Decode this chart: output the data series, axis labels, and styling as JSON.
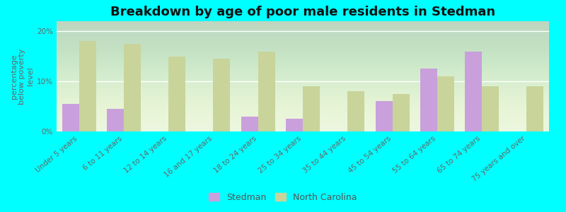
{
  "title": "Breakdown by age of poor male residents in Stedman",
  "ylabel": "percentage\nbelow poverty\nlevel",
  "categories": [
    "Under 5 years",
    "6 to 11 years",
    "12 to 14 years",
    "16 and 17 years",
    "18 to 24 years",
    "25 to 34 years",
    "35 to 44 years",
    "45 to 54 years",
    "55 to 64 years",
    "65 to 74 years",
    "75 years and over"
  ],
  "stedman_values": [
    5.5,
    4.5,
    0,
    0,
    3.0,
    2.5,
    0,
    6.0,
    12.5,
    16.0,
    0
  ],
  "nc_values": [
    18.0,
    17.5,
    15.0,
    14.5,
    16.0,
    9.0,
    8.0,
    7.5,
    11.0,
    9.0,
    9.0
  ],
  "stedman_color": "#c9a0dc",
  "nc_color": "#c8d49a",
  "background_color": "#e8f5e0",
  "outer_bg": "#00ffff",
  "ylim": [
    0,
    22
  ],
  "yticks": [
    0,
    10,
    20
  ],
  "ytick_labels": [
    "0%",
    "10%",
    "20%"
  ],
  "title_fontsize": 13,
  "axis_label_fontsize": 8,
  "tick_fontsize": 7.5,
  "legend_labels": [
    "Stedman",
    "North Carolina"
  ],
  "bar_width": 0.38
}
